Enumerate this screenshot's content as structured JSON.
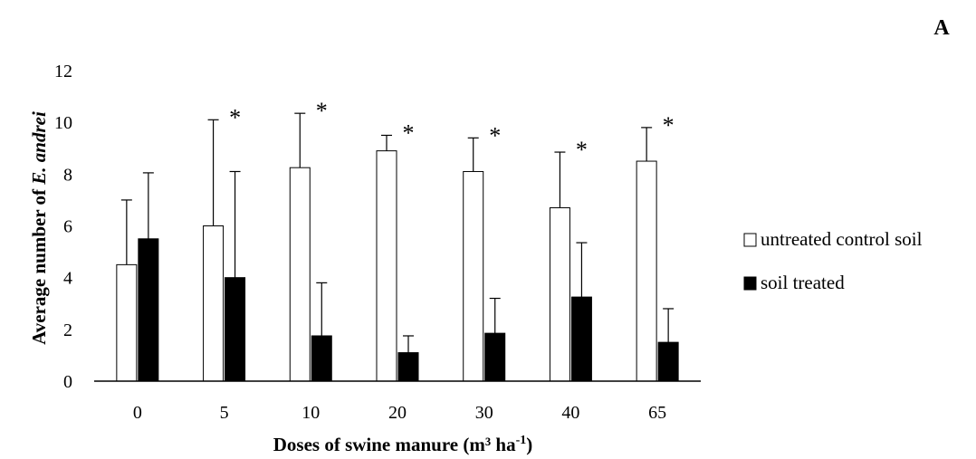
{
  "panel_label": "A",
  "chart_data": {
    "type": "bar",
    "categories": [
      "0",
      "5",
      "10",
      "20",
      "30",
      "40",
      "65"
    ],
    "series": [
      {
        "name": "untreated control soil",
        "values": [
          4.5,
          6.0,
          8.25,
          8.9,
          8.1,
          6.7,
          8.5
        ],
        "errors": [
          2.5,
          4.1,
          2.1,
          0.6,
          1.3,
          2.15,
          1.3
        ],
        "color": "#ffffff"
      },
      {
        "name": "soil treated",
        "values": [
          5.5,
          4.0,
          1.75,
          1.1,
          1.85,
          3.25,
          1.5
        ],
        "errors": [
          2.55,
          4.1,
          2.05,
          0.65,
          1.35,
          2.1,
          1.3
        ],
        "color": "#000000"
      }
    ],
    "significance": [
      "",
      "*",
      "*",
      "*",
      "*",
      "*",
      "*"
    ],
    "ylabel_text": "Average number of ",
    "ylabel_species": "E. andrei",
    "xlabel_text": "Doses of swine manure (m³ ha",
    "xlabel_sup": "-1",
    "xlabel_close": ")",
    "ylim": [
      0,
      12
    ],
    "yticks": [
      "0",
      "2",
      "4",
      "6",
      "8",
      "10",
      "12"
    ],
    "grid": false,
    "legend_position": "right"
  }
}
